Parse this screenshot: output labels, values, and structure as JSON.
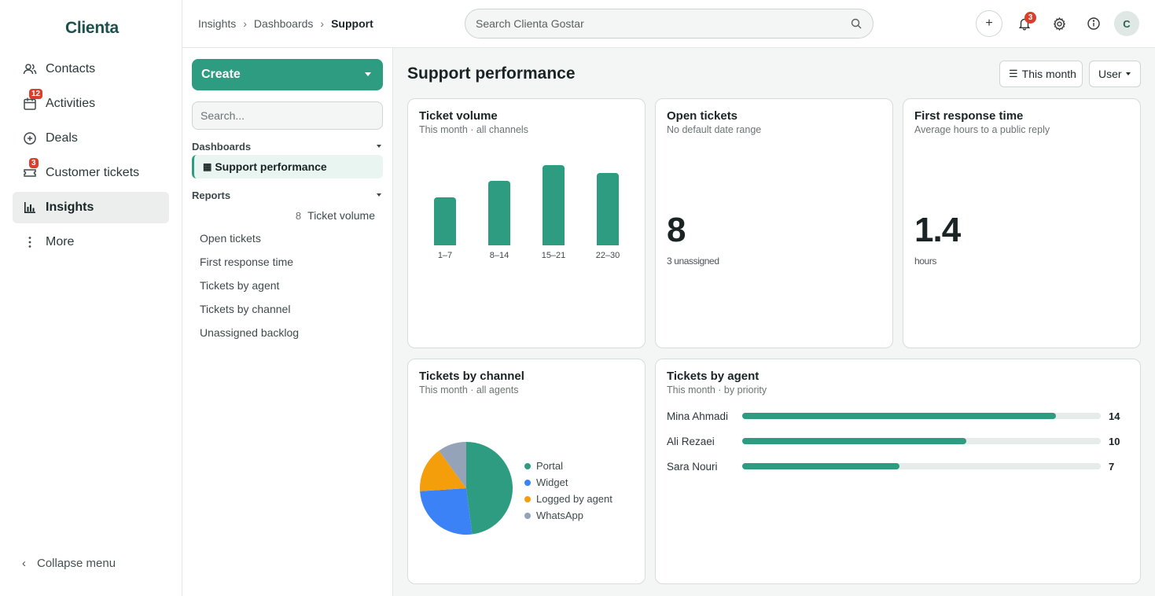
{
  "brand": "Clienta",
  "nav": {
    "items": [
      {
        "label": "Contacts",
        "badge": null
      },
      {
        "label": "Activities",
        "badge": "12"
      },
      {
        "label": "Deals",
        "badge": null
      },
      {
        "label": "Customer tickets",
        "badge": "3"
      },
      {
        "label": "Insights",
        "badge": null
      },
      {
        "label": "More",
        "badge": null
      }
    ],
    "collapse_label": "Collapse menu"
  },
  "breadcrumb": [
    "Insights",
    "Dashboards",
    "Support"
  ],
  "search": {
    "placeholder": "Search Clienta Gostar"
  },
  "topbar": {
    "plus": "+",
    "notifications_count": "3",
    "avatar_initial": "C"
  },
  "panel": {
    "create_label": "Create",
    "search_placeholder": "Search...",
    "dashboards_heading": "Dashboards",
    "dashboard_item": "Support performance",
    "reports_heading": "Reports",
    "reports": [
      {
        "label": "Ticket volume",
        "count": "8"
      },
      {
        "label": "Open tickets"
      },
      {
        "label": "First response time"
      },
      {
        "label": "Tickets by agent"
      },
      {
        "label": "Tickets by channel"
      },
      {
        "label": "Unassigned backlog"
      }
    ]
  },
  "main": {
    "title": "Support performance",
    "filter_month": "This month",
    "filter_user": "User"
  },
  "cards": {
    "volume": {
      "title": "Ticket volume",
      "subtitle": "This month · all channels"
    },
    "open": {
      "title": "Open tickets",
      "subtitle": "No default date range",
      "value": "8",
      "sub": "3 unassigned"
    },
    "response": {
      "title": "First response time",
      "subtitle": "Average hours to a public reply",
      "value": "1.4",
      "sub": "hours"
    },
    "channel": {
      "title": "Tickets by channel",
      "subtitle": "This month · all agents"
    },
    "agent": {
      "title": "Tickets by agent",
      "subtitle": "This month · by priority"
    }
  },
  "colors": {
    "accent": "#2e9c80",
    "portal": "#2e9c80",
    "widget": "#3b82f6",
    "logged": "#f59e0b",
    "whatsapp": "#94a3b8"
  },
  "chart_data": [
    {
      "type": "bar",
      "categories": [
        "1–7",
        "8–14",
        "15–21",
        "22–30"
      ],
      "values": [
        6,
        8,
        10,
        9
      ],
      "title": "Ticket volume",
      "ylim": [
        0,
        10
      ]
    },
    {
      "type": "pie",
      "title": "Tickets by channel",
      "categories": [
        "Portal",
        "Widget",
        "Logged by agent",
        "WhatsApp"
      ],
      "values": [
        48,
        26,
        16,
        10
      ]
    },
    {
      "type": "bar",
      "orientation": "horizontal",
      "title": "Tickets by agent",
      "categories": [
        "Mina Ahmadi",
        "Ali Rezaei",
        "Sara Nouri"
      ],
      "values": [
        14,
        10,
        7
      ],
      "xlim": [
        0,
        16
      ]
    }
  ]
}
